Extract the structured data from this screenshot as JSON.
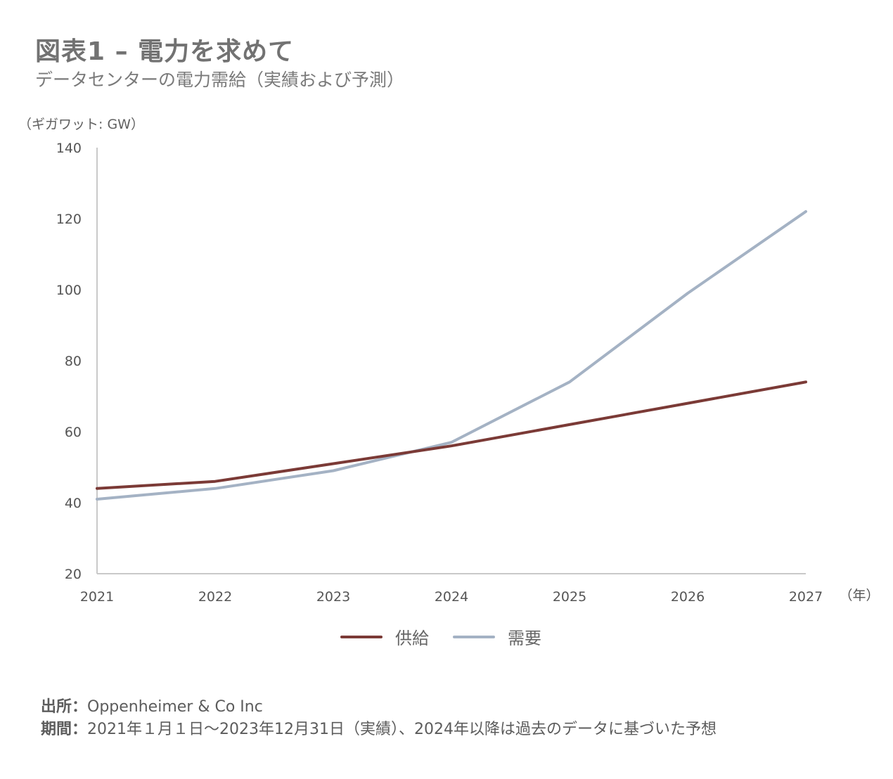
{
  "title": "図表1 – 電力を求めて",
  "subtitle": "データセンターの電力需給（実績および予測）",
  "chart_data": {
    "type": "line",
    "title": "図表1 – 電力を求めて",
    "subtitle": "データセンターの電力需給（実績および予測）",
    "ylabel": "（ギガワット: GW）",
    "xlabel": "（年）",
    "x": [
      "2021",
      "2022",
      "2023",
      "2024",
      "2025",
      "2026",
      "2027"
    ],
    "ylim": [
      20,
      140
    ],
    "yticks": [
      "20",
      "40",
      "60",
      "80",
      "100",
      "120",
      "140"
    ],
    "grid": false,
    "legend_position": "bottom-center",
    "series": [
      {
        "name": "供給",
        "color": "#7b3a36",
        "values": [
          44,
          46,
          51,
          56,
          62,
          68,
          74
        ]
      },
      {
        "name": "需要",
        "color": "#a4b2c4",
        "values": [
          41,
          44,
          49,
          57,
          74,
          99,
          122
        ]
      }
    ]
  },
  "notes": {
    "source_label": "出所：",
    "source_value": "Oppenheimer & Co Inc",
    "period_label": "期間：",
    "period_value": "2021年１月１日～2023年12月31日（実績）、2024年以降は過去のデータに基づいた予想"
  }
}
